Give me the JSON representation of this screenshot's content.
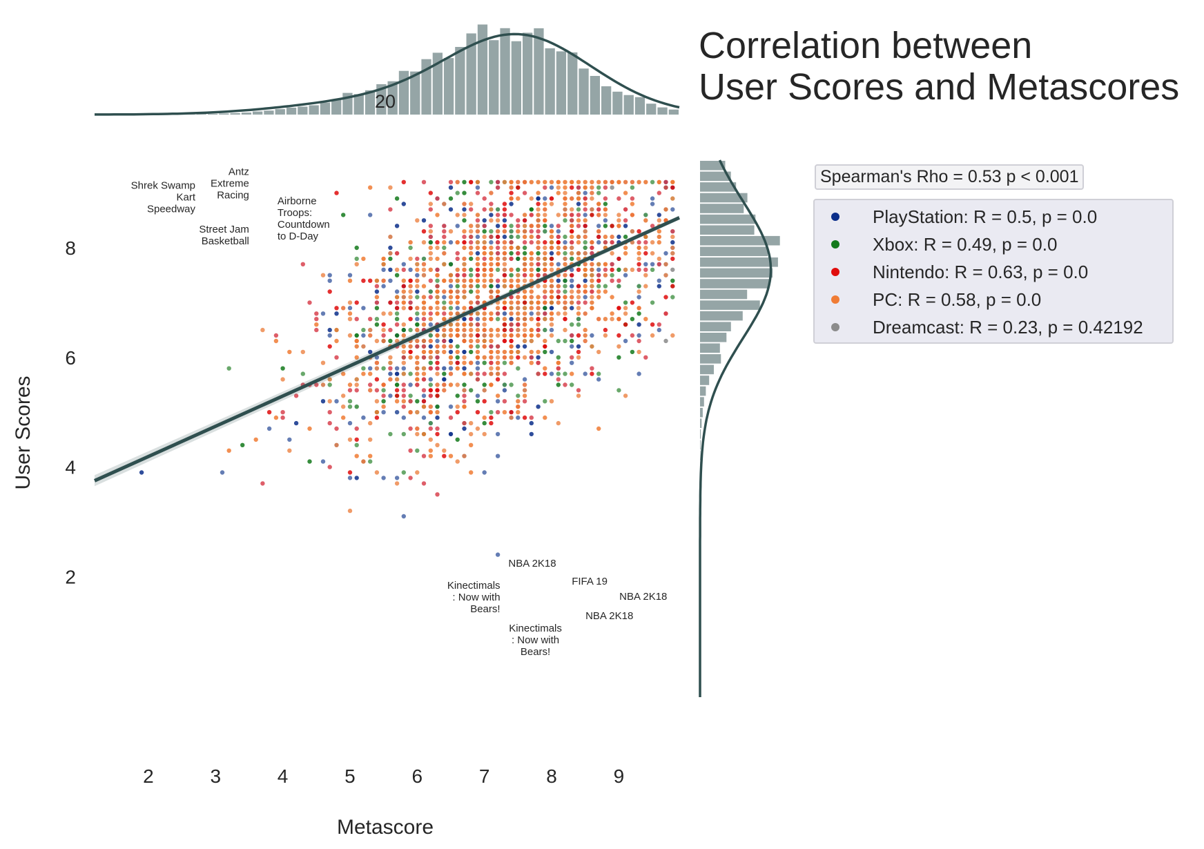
{
  "title_lines": [
    "Correlation between",
    "User Scores and Metascores"
  ],
  "spearman_label": "Spearman's Rho = 0.53 p < 0.001",
  "colors": {
    "marginal_bar": "#95a5a6",
    "kde_line": "#2f4f4f",
    "regression": "#2f4f4f",
    "legend_bg": "#eaeaf2"
  },
  "chart_data": {
    "type": "scatter",
    "xlabel": "Metascore",
    "ylabel": "User Scores",
    "xlim": [
      1.2,
      9.9
    ],
    "ylim": [
      -0.2,
      9.6
    ],
    "x_ticks": [
      2,
      3,
      4,
      5,
      6,
      7,
      8,
      9
    ],
    "y_ticks": [
      2,
      4,
      6,
      8
    ],
    "grid": false,
    "legend_position": "right",
    "series": [
      {
        "name": "PlayStation",
        "label": "PlayStation: R = 0.5, p = 0.0",
        "color": "#0b2e8a",
        "point_color": "#4a67a8"
      },
      {
        "name": "Xbox",
        "label": "Xbox: R = 0.49, p = 0.0",
        "color": "#137a1c",
        "point_color": "#4f9a52"
      },
      {
        "name": "Nintendo",
        "label": "Nintendo: R = 0.63, p = 0.0",
        "color": "#e00d0d",
        "point_color": "#d9434f"
      },
      {
        "name": "PC",
        "label": "PC: R = 0.58, p = 0.0",
        "color": "#f07c35",
        "point_color": "#ee8a4e"
      },
      {
        "name": "Dreamcast",
        "label": "Dreamcast: R = 0.23, p = 0.42192",
        "color": "#8c8c8c",
        "point_color": "#9a9a9a"
      }
    ],
    "regression_line": {
      "x": [
        1.2,
        9.9
      ],
      "y": [
        3.75,
        8.55
      ]
    },
    "top_marginal": {
      "tick_label": "20"
    },
    "annotations": [
      {
        "text": "Shrek Swamp\nKart\nSpeedway",
        "x": 2.7,
        "y": 8.6,
        "anchor": "end"
      },
      {
        "text": "Antz\nExtreme\nRacing",
        "x": 3.5,
        "y": 8.7,
        "anchor": "end"
      },
      {
        "text": "Street Jam\nBasketball",
        "x": 3.5,
        "y": 8.0,
        "anchor": "end"
      },
      {
        "text": "Airborne\nTroops:\nCountdown\nto D-Day",
        "x": 3.9,
        "y": 8.1,
        "anchor": "start"
      },
      {
        "text": "NBA 2K18",
        "x": 8.0,
        "y": 1.7,
        "anchor": "middle"
      },
      {
        "text": "FIFA 19",
        "x": 8.3,
        "y": 1.7,
        "anchor": "start"
      },
      {
        "text": "NBA 2K18",
        "x": 8.7,
        "y": 1.6,
        "anchor": "start"
      },
      {
        "text": "NBA 2K18",
        "x": 8.5,
        "y": 1.5,
        "anchor": "middle"
      },
      {
        "text": "Kinectimals\n: Now with\nBears!",
        "x": 7.8,
        "y": 1.5,
        "anchor": "end"
      },
      {
        "text": "Kinectimals\n: Now with\nBears!",
        "x": 7.8,
        "y": 1.5,
        "anchor": "middle"
      }
    ]
  }
}
